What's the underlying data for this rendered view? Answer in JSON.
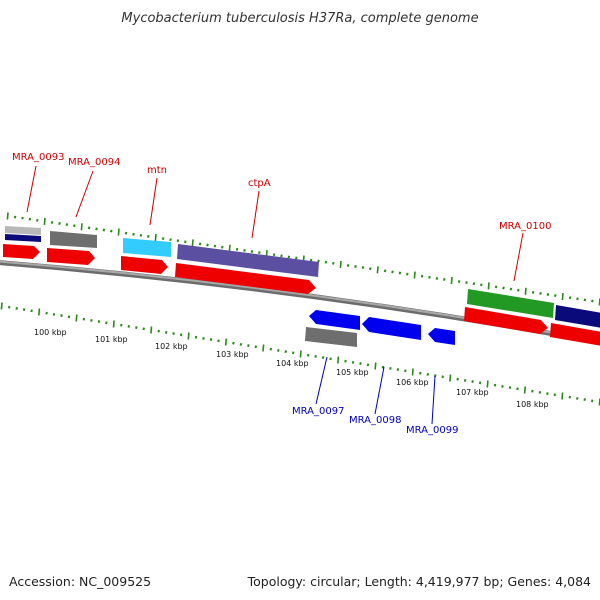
{
  "title": "Mycobacterium tuberculosis H37Ra, complete genome",
  "footer": {
    "accession": "Accession: NC_009525",
    "summary": "Topology: circular; Length: 4,419,977 bp; Genes: 4,084"
  },
  "colors": {
    "label_upper": "#cc0000",
    "label_lower": "#0000bb",
    "backbone": "#8c8c8c",
    "tick": "#2a8a1a",
    "red": "#ee0000",
    "blue": "#0000ee",
    "navy": "#0a0a7a",
    "gray": "#6e6e6e",
    "cyan": "#33ccff",
    "slate": "#5a4fa0",
    "green": "#229922",
    "light_gray": "#b8b8b8"
  },
  "kbp_labels": [
    "100 kbp",
    "101 kbp",
    "102 kbp",
    "103 kbp",
    "104 kbp",
    "105 kbp",
    "106 kbp",
    "107 kbp",
    "108 kbp"
  ],
  "gene_labels": [
    {
      "text": "MRA_0093",
      "group": "upper"
    },
    {
      "text": "MRA_0094",
      "group": "upper"
    },
    {
      "text": "mtn",
      "group": "upper"
    },
    {
      "text": "ctpA",
      "group": "upper"
    },
    {
      "text": "MRA_0100",
      "group": "upper"
    },
    {
      "text": "MRA_0097",
      "group": "lower"
    },
    {
      "text": "MRA_0098",
      "group": "lower"
    },
    {
      "text": "MRA_0099",
      "group": "lower"
    }
  ]
}
